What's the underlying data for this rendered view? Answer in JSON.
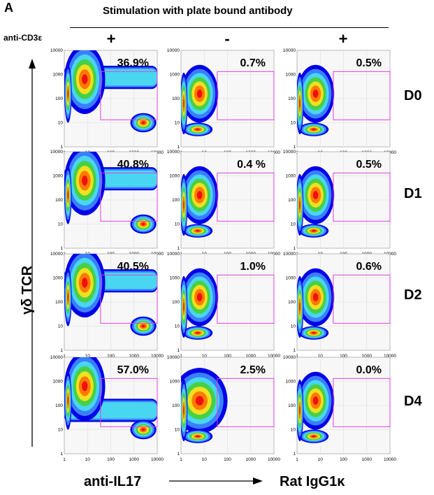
{
  "panel_label": "A",
  "header": {
    "title": "Stimulation with plate bound antibody",
    "cd3_label": "anti-CD3ε",
    "signs": [
      "+",
      "-",
      "+"
    ]
  },
  "y_axis_label": "γδ TCR",
  "x_label_left": "anti-IL17",
  "x_label_right": "Rat IgG1κ",
  "days": [
    "D0",
    "D1",
    "D2",
    "D4"
  ],
  "axis_ticks": [
    "1",
    "10",
    "100",
    "1000",
    "10000"
  ],
  "percentages": [
    [
      "36.9%",
      "0.7%",
      "0.5%"
    ],
    [
      "40.8%",
      "0.4 %",
      "0.5%"
    ],
    [
      "40.5%",
      "1.0%",
      "0.6%"
    ],
    [
      "57.0%",
      "2.5%",
      "0.0%"
    ]
  ],
  "colors": {
    "gate": "#e040e0",
    "density": [
      "#0000e6",
      "#3a7fff",
      "#49d6f0",
      "#46d046",
      "#f0e020",
      "#ff7a00",
      "#ee1010"
    ]
  }
}
